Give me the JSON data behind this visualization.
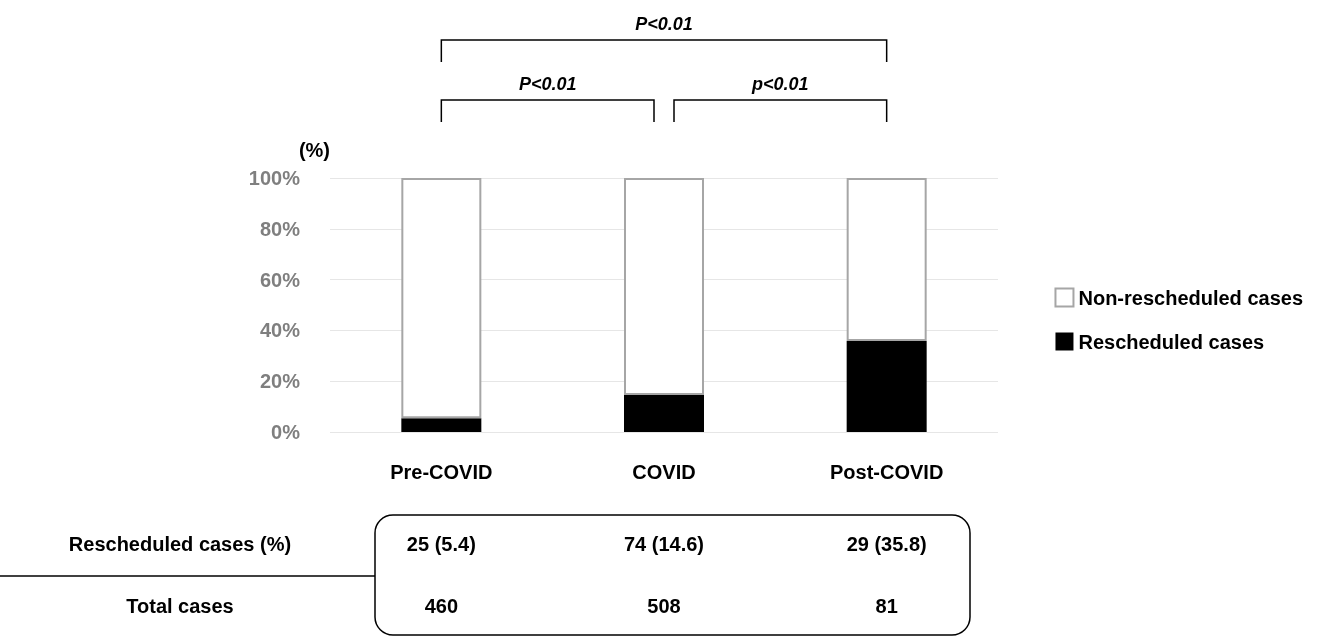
{
  "chart_data": {
    "type": "bar",
    "stacked": true,
    "ylabel": "(%)",
    "categories": [
      "Pre-COVID",
      "COVID",
      "Post-COVID"
    ],
    "series": [
      {
        "name": "Rescheduled cases",
        "color": "#000000",
        "values": [
          5.4,
          14.6,
          35.8
        ],
        "value_labels": [
          "25 (5.4)",
          "74 (14.6)",
          "29 (35.8)"
        ]
      },
      {
        "name": "Non-rescheduled cases",
        "color": "#ffffff",
        "values": [
          94.6,
          85.4,
          64.2
        ]
      }
    ],
    "ylim": [
      0,
      100
    ],
    "yticks": [
      {
        "value": 0,
        "label": "0%"
      },
      {
        "value": 20,
        "label": "20%"
      },
      {
        "value": 40,
        "label": "40%"
      },
      {
        "value": 60,
        "label": "60%"
      },
      {
        "value": 80,
        "label": "80%"
      },
      {
        "value": 100,
        "label": "100%"
      }
    ],
    "grid": "y",
    "legend": "right",
    "annotations": [
      "P<0.01",
      "P<0.01",
      "p<0.01",
      "Rescheduled cases (%)",
      "Total cases",
      "460",
      "508",
      "81"
    ]
  }
}
